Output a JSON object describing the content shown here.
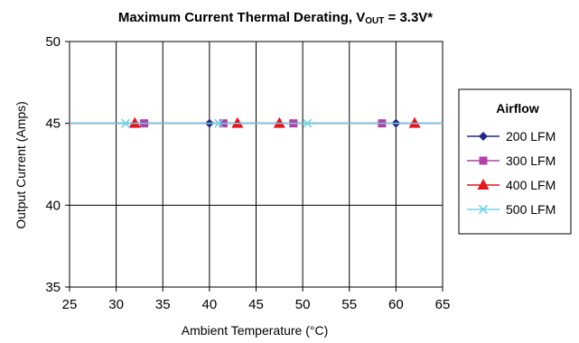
{
  "chart_data": {
    "type": "line",
    "title": "Maximum Current Thermal Derating, V",
    "title_sub": "OUT",
    "title_end": " = 3.3V*",
    "xlabel": "Ambient Temperature (°C)",
    "ylabel": "Output Current (Amps)",
    "xlim": [
      25,
      65
    ],
    "ylim": [
      35,
      50
    ],
    "x_ticks": [
      "25",
      "30",
      "35",
      "40",
      "45",
      "50",
      "55",
      "60",
      "65"
    ],
    "y_ticks": [
      "35",
      "40",
      "45",
      "50"
    ],
    "grid": true,
    "legend_title": "Airflow",
    "legend_position": "right",
    "series": [
      {
        "name": "200 LFM",
        "color": "#1f2a8c",
        "marker": "diamond",
        "x": [
          25,
          40,
          60,
          65
        ],
        "y": [
          45,
          45,
          45,
          45
        ]
      },
      {
        "name": "300 LFM",
        "color": "#b040a8",
        "marker": "square",
        "x": [
          25,
          33,
          41.5,
          49,
          58.5,
          65
        ],
        "y": [
          45,
          45,
          45,
          45,
          45,
          45
        ]
      },
      {
        "name": "400 LFM",
        "color": "#e8141e",
        "marker": "triangle",
        "x": [
          25,
          32,
          43,
          47.5,
          62,
          65
        ],
        "y": [
          45,
          45,
          45,
          45,
          45,
          45
        ]
      },
      {
        "name": "500 LFM",
        "color": "#6fd3e8",
        "marker": "x",
        "x": [
          25,
          31,
          41,
          50.5,
          65
        ],
        "y": [
          45,
          45,
          45,
          45,
          45
        ]
      }
    ]
  }
}
